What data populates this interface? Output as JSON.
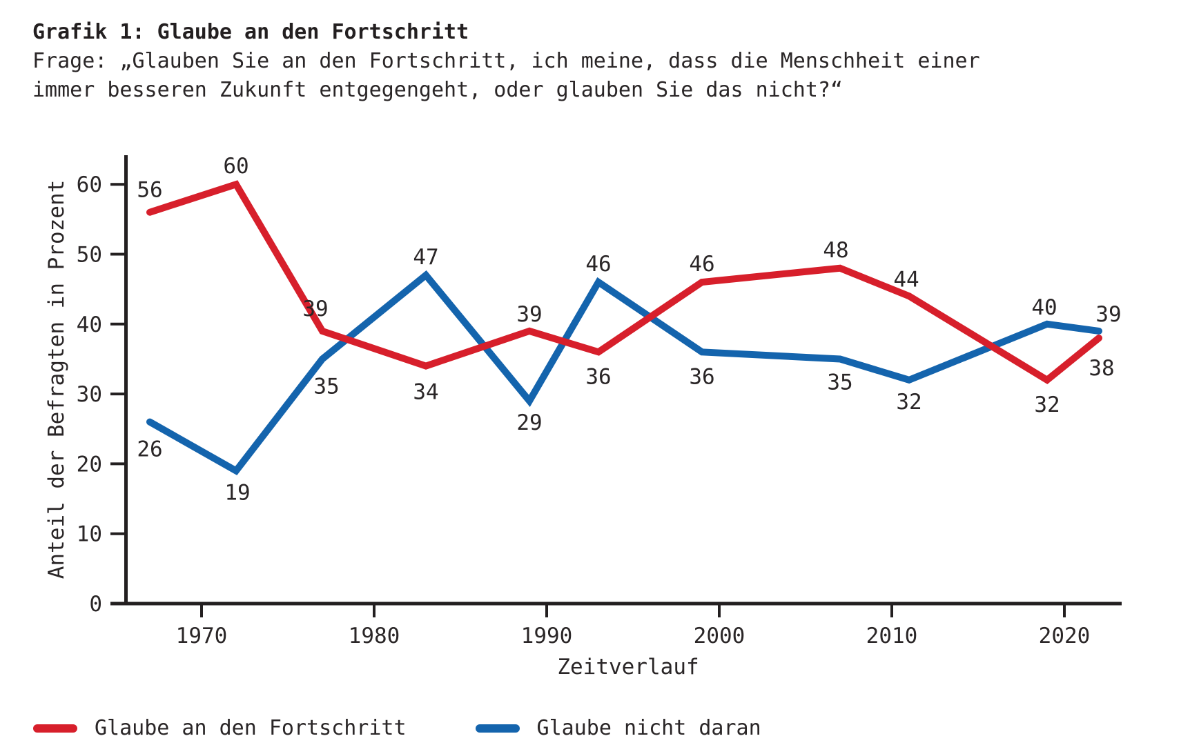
{
  "header": {
    "title": "Grafik 1: Glaube an den Fortschritt",
    "subtitle_line1": "Frage: „Glauben Sie an den Fortschritt, ich meine, dass die Menschheit einer",
    "subtitle_line2": "immer besseren Zukunft entgegengeht, oder glauben Sie das nicht?“"
  },
  "chart_data": {
    "type": "line",
    "title": "Grafik 1: Glaube an den Fortschritt",
    "x": [
      1967,
      1972,
      1977,
      1983,
      1989,
      1993,
      1999,
      2007,
      2011,
      2019,
      2022
    ],
    "series": [
      {
        "name": "Glaube an den Fortschritt",
        "color": "#d71f2b",
        "values": [
          56,
          60,
          39,
          34,
          39,
          36,
          46,
          48,
          44,
          32,
          38
        ],
        "label_offsets": [
          [
            0,
            -22
          ],
          [
            0,
            -16
          ],
          [
            -10,
            -22
          ],
          [
            0,
            48
          ],
          [
            0,
            -14
          ],
          [
            0,
            46
          ],
          [
            0,
            -16
          ],
          [
            -6,
            -16
          ],
          [
            -4,
            -14
          ],
          [
            0,
            46
          ],
          [
            4,
            54
          ]
        ]
      },
      {
        "name": "Glaube nicht daran",
        "color": "#1464ad",
        "values": [
          26,
          19,
          35,
          47,
          29,
          46,
          36,
          35,
          32,
          40,
          39
        ],
        "label_offsets": [
          [
            0,
            50
          ],
          [
            2,
            42
          ],
          [
            6,
            50
          ],
          [
            0,
            -16
          ],
          [
            0,
            42
          ],
          [
            0,
            -16
          ],
          [
            0,
            46
          ],
          [
            0,
            44
          ],
          [
            0,
            42
          ],
          [
            -4,
            -14
          ],
          [
            14,
            -14
          ]
        ]
      }
    ],
    "xlabel": "Zeitverlauf",
    "ylabel": "Anteil der Befragten in Prozent",
    "xticks": [
      1970,
      1980,
      1990,
      2000,
      2010,
      2020
    ],
    "yticks": [
      0,
      10,
      20,
      30,
      40,
      50,
      60
    ],
    "xlim": [
      1965,
      2023.5
    ],
    "ylim": [
      0,
      64
    ],
    "grid": false,
    "legend_position": "bottom-left",
    "axis_color": "#231f20",
    "text_color": "#2a2627",
    "line_width": 10
  },
  "legend": {
    "items": [
      {
        "label": "Glaube an den Fortschritt",
        "color": "#d71f2b"
      },
      {
        "label": "Glaube nicht daran",
        "color": "#1464ad"
      }
    ]
  }
}
